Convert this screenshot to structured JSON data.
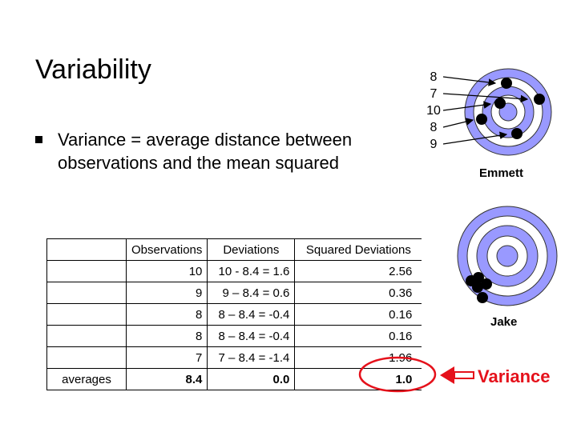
{
  "slide": {
    "title": "Variability",
    "bullet": "Variance = average distance between observations and the mean squared"
  },
  "table": {
    "headers": [
      "Observations",
      "Deviations",
      "Squared Deviations"
    ],
    "rows": [
      {
        "obs": "10",
        "dev": "10 - 8.4 = 1.6",
        "sq": "2.56"
      },
      {
        "obs": "9",
        "dev": "9 – 8.4 = 0.6",
        "sq": "0.36"
      },
      {
        "obs": "8",
        "dev": "8 – 8.4 = -0.4",
        "sq": "0.16"
      },
      {
        "obs": "8",
        "dev": "8 – 8.4 = -0.4",
        "sq": "0.16"
      },
      {
        "obs": "7",
        "dev": "7 – 8.4 = -1.4",
        "sq": "1.96"
      }
    ],
    "averages": {
      "label": "averages",
      "obs": "8.4",
      "dev": "0.0",
      "sq": "1.0"
    }
  },
  "targets": {
    "emmett": {
      "label": "Emmett",
      "scores": [
        "8",
        "7",
        "10",
        "8",
        "9"
      ]
    },
    "jake": {
      "label": "Jake"
    }
  },
  "annotation": {
    "label": "Variance",
    "color": "#e5111b"
  },
  "colors": {
    "ring_blue": "#9999ff",
    "ring_white": "#ffffff",
    "highlight": "#e5111b"
  }
}
